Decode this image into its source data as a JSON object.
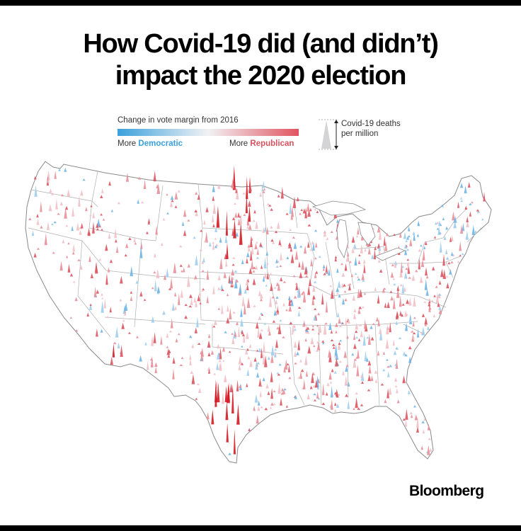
{
  "title": {
    "line1": "How Covid-19 did (and didn’t)",
    "line2": "impact the 2020 election"
  },
  "legend": {
    "gradient_label": "Change in vote margin from 2016",
    "left_prefix": "More ",
    "left_party": "Democratic",
    "right_prefix": "More ",
    "right_party": "Republican",
    "size_label_line1": "Covid-19 deaths",
    "size_label_line2": "per million"
  },
  "brand": "Bloomberg",
  "colors": {
    "democratic": "#3aa0dc",
    "republican": "#d9525e",
    "strong_republican": "#d21a22",
    "border": "#8a8a8a"
  },
  "map": {
    "subject": "United States counties",
    "encoding": "spike height = Covid-19 deaths per million; color = change in vote margin from 2016"
  }
}
